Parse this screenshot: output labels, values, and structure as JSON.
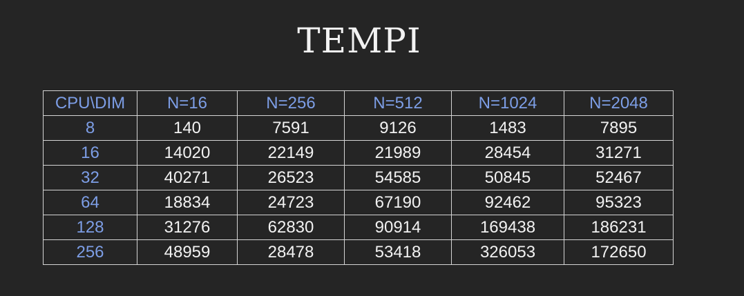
{
  "title": "TEMPI",
  "table": {
    "headers": [
      "CPU\\DIM",
      "N=16",
      "N=256",
      "N=512",
      "N=1024",
      "N=2048"
    ],
    "rows": [
      {
        "label": "8",
        "values": [
          "140",
          "7591",
          "9126",
          "1483",
          "7895"
        ]
      },
      {
        "label": "16",
        "values": [
          "14020",
          "22149",
          "21989",
          "28454",
          "31271"
        ]
      },
      {
        "label": "32",
        "values": [
          "40271",
          "26523",
          "54585",
          "50845",
          "52467"
        ]
      },
      {
        "label": "64",
        "values": [
          "18834",
          "24723",
          "67190",
          "92462",
          "95323"
        ]
      },
      {
        "label": "128",
        "values": [
          "31276",
          "62830",
          "90914",
          "169438",
          "186231"
        ]
      },
      {
        "label": "256",
        "values": [
          "48959",
          "28478",
          "53418",
          "326053",
          "172650"
        ]
      }
    ]
  },
  "colors": {
    "background": "#252525",
    "text": "#f2f2f2",
    "header_accent": "#7d9ee6",
    "border": "#d6d6d6"
  }
}
